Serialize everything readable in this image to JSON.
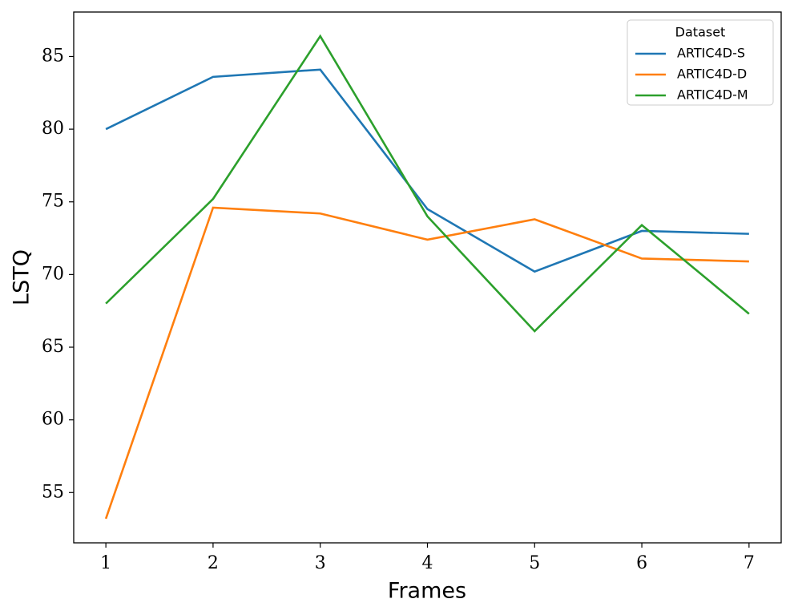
{
  "chart_data": {
    "type": "line",
    "x_label": "Frames",
    "y_label": "LSTQ",
    "x": [
      1,
      2,
      3,
      4,
      5,
      6,
      7
    ],
    "xlim": [
      0.7,
      7.3
    ],
    "xticks": [
      1,
      2,
      3,
      4,
      5,
      6,
      7
    ],
    "ylim": [
      51.54,
      88.06
    ],
    "yticks": [
      55,
      60,
      65,
      70,
      75,
      80,
      85
    ],
    "grid": false,
    "legend_title": "Dataset",
    "legend_position": "upper-right",
    "series": [
      {
        "name": "ARTIC4D-S",
        "color": "#1f77b4",
        "values": [
          80.0,
          83.6,
          84.1,
          74.5,
          70.2,
          73.0,
          72.8
        ]
      },
      {
        "name": "ARTIC4D-D",
        "color": "#ff7f0e",
        "values": [
          53.2,
          74.6,
          74.2,
          72.4,
          73.8,
          71.1,
          70.9
        ]
      },
      {
        "name": "ARTIC4D-M",
        "color": "#2ca02c",
        "values": [
          68.0,
          75.2,
          86.4,
          74.0,
          66.1,
          73.4,
          67.3
        ]
      }
    ]
  }
}
